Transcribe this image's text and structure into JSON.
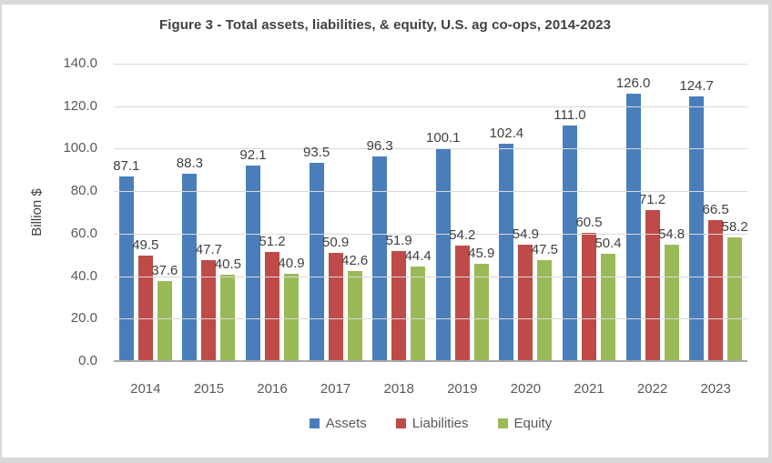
{
  "chart_data": {
    "type": "bar",
    "title": "Figure 3 - Total assets, liabilities, & equity, U.S. ag co-ops, 2014-2023",
    "ylabel": "Billion $",
    "xlabel": "",
    "categories": [
      "2014",
      "2015",
      "2016",
      "2017",
      "2018",
      "2019",
      "2020",
      "2021",
      "2022",
      "2023"
    ],
    "series": [
      {
        "name": "Assets",
        "color": "#4A7EBB",
        "values": [
          87.1,
          88.3,
          92.1,
          93.5,
          96.3,
          100.1,
          102.4,
          111.0,
          126.0,
          124.7
        ]
      },
      {
        "name": "Liabilities",
        "color": "#BE4B48",
        "values": [
          49.5,
          47.7,
          51.2,
          50.9,
          51.9,
          54.2,
          54.9,
          60.5,
          71.2,
          66.5
        ]
      },
      {
        "name": "Equity",
        "color": "#9ABA58",
        "values": [
          37.6,
          40.5,
          40.9,
          42.6,
          44.4,
          45.9,
          47.5,
          50.4,
          54.8,
          58.2
        ]
      }
    ],
    "ylim": [
      0,
      140
    ],
    "ytick_labels": [
      "0.0",
      "20.0",
      "40.0",
      "60.0",
      "80.0",
      "100.0",
      "120.0",
      "140.0"
    ],
    "grid": true,
    "legend_position": "bottom",
    "data_labels": true,
    "data_label_decimals": 1,
    "colors": {
      "title_text": "#404040",
      "axis_text": "#595959",
      "gridline": "#d9d9d9",
      "axis_line": "#a9a9a9",
      "frame_border": "#d9d9d9",
      "background": "#ffffff"
    }
  }
}
